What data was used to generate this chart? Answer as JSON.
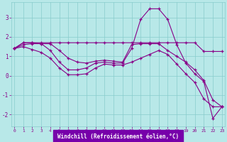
{
  "xlabel": "Windchill (Refroidissement éolien,°C)",
  "background_color": "#b8e8e8",
  "grid_color": "#88cccc",
  "line_color": "#880088",
  "xlabel_bg": "#7700aa",
  "xlabel_fg": "#ffffff",
  "tick_color": "#880088",
  "x_ticks": [
    0,
    1,
    2,
    3,
    4,
    5,
    6,
    7,
    8,
    9,
    10,
    11,
    12,
    13,
    14,
    15,
    16,
    17,
    18,
    19,
    20,
    21,
    22,
    23
  ],
  "y_ticks": [
    -2,
    -1,
    0,
    1,
    2,
    3
  ],
  "xlim": [
    -0.3,
    23.3
  ],
  "ylim": [
    -2.6,
    3.8
  ],
  "series": [
    [
      1.4,
      1.7,
      1.7,
      1.7,
      1.7,
      1.7,
      1.7,
      1.7,
      1.7,
      1.7,
      1.7,
      1.7,
      1.7,
      1.7,
      1.7,
      1.7,
      1.7,
      1.7,
      1.7,
      1.7,
      1.7,
      1.25,
      1.25,
      1.25
    ],
    [
      1.4,
      1.7,
      1.7,
      1.65,
      1.65,
      1.3,
      0.9,
      0.7,
      0.65,
      0.75,
      0.8,
      0.75,
      0.7,
      1.6,
      1.65,
      1.65,
      1.65,
      1.3,
      1.0,
      0.7,
      0.3,
      -0.25,
      -1.25,
      -1.6
    ],
    [
      1.4,
      1.6,
      1.65,
      1.65,
      1.3,
      0.7,
      0.3,
      0.3,
      0.4,
      0.65,
      0.7,
      0.65,
      0.65,
      1.4,
      2.9,
      3.45,
      3.45,
      2.9,
      1.6,
      0.65,
      0.1,
      -0.3,
      -2.2,
      -1.6
    ],
    [
      1.4,
      1.5,
      1.35,
      1.2,
      0.9,
      0.4,
      0.05,
      0.05,
      0.1,
      0.4,
      0.6,
      0.55,
      0.55,
      0.7,
      0.9,
      1.1,
      1.3,
      1.1,
      0.6,
      0.1,
      -0.35,
      -1.2,
      -1.6,
      -1.6
    ]
  ]
}
